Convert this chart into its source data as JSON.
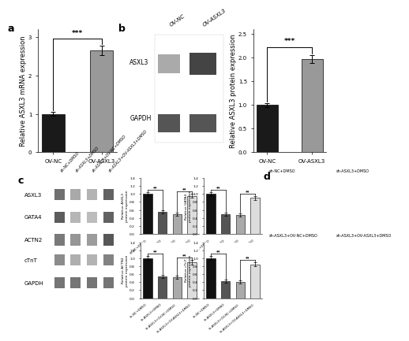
{
  "panel_a": {
    "categories": [
      "OV-NC",
      "OV-ASXL3"
    ],
    "values": [
      1.0,
      2.65
    ],
    "errors": [
      0.05,
      0.12
    ],
    "colors": [
      "#1a1a1a",
      "#999999"
    ],
    "ylabel": "Relative ASXL3 mRNA expression",
    "ylim": [
      0,
      3.2
    ],
    "yticks": [
      0,
      1,
      2,
      3
    ],
    "significance": "***"
  },
  "panel_b_bar": {
    "categories": [
      "OV-NC",
      "OV-ASXL3"
    ],
    "values": [
      1.0,
      1.97
    ],
    "errors": [
      0.04,
      0.08
    ],
    "colors": [
      "#1a1a1a",
      "#999999"
    ],
    "ylabel": "Relative ASXL3 protein expression",
    "ylim": [
      0,
      2.6
    ],
    "yticks": [
      0.0,
      0.5,
      1.0,
      1.5,
      2.0,
      2.5
    ],
    "significance": "***"
  },
  "panel_c_bars": {
    "groups": [
      "sh-NC+DMSO",
      "sh-ASXL3+DMSO",
      "sh-ASXL3+OV-NC+DMSO",
      "sh-ASXL3+OV-ASXL3+DMSO"
    ],
    "colors": [
      "#111111",
      "#555555",
      "#aaaaaa",
      "#dddddd"
    ],
    "ASXL3": [
      1.0,
      0.55,
      0.5,
      0.95
    ],
    "ASXL3_err": [
      0.05,
      0.04,
      0.04,
      0.05
    ],
    "GATA4": [
      1.0,
      0.5,
      0.48,
      0.9
    ],
    "GATA4_err": [
      0.05,
      0.04,
      0.04,
      0.05
    ],
    "ACTN2": [
      1.0,
      0.55,
      0.52,
      0.9
    ],
    "ACTN2_err": [
      0.05,
      0.04,
      0.04,
      0.05
    ],
    "cTnT": [
      1.0,
      0.42,
      0.4,
      0.85
    ],
    "cTnT_err": [
      0.05,
      0.04,
      0.04,
      0.05
    ],
    "ylim": [
      0,
      1.4
    ],
    "yticks": [
      0.0,
      0.2,
      0.4,
      0.6,
      0.8,
      1.0,
      1.2,
      1.4
    ]
  },
  "blot_b": {
    "lane_labels": [
      "OV-NC",
      "OV-ASXL3"
    ],
    "row_labels": [
      "ASXL3",
      "GAPDH"
    ],
    "bg_color": "#e8e8e8",
    "band_colors_ASXL3": [
      "#888888",
      "#333333"
    ],
    "band_colors_GAPDH": [
      "#444444",
      "#555555"
    ]
  },
  "blot_c": {
    "lane_labels": [
      "sh-NC+DMSO",
      "sh-ASXL3+DMSO",
      "sh-ASXL3+OV-NC+DMSO",
      "sh-ASXL3+OV-ASXL3+DMSO"
    ],
    "row_labels": [
      "ASXL3",
      "GATA4",
      "ACTN2",
      "cTnT",
      "GAPDH"
    ],
    "bg_color": "#d0d0d0"
  },
  "panel_d": {
    "labels": [
      [
        "sh-NC+DMSO",
        "sh-ASXL3+DMSO"
      ],
      [
        "sh-ASXL3+OV-NC+DMSO",
        "sh-ASXL3+OV-ASXL3+DMSO"
      ]
    ],
    "colors": [
      [
        "#7a9478",
        "#6a8468"
      ],
      [
        "#708870",
        "#8a9e88"
      ]
    ]
  },
  "background_color": "#ffffff",
  "label_fontsize": 6.0,
  "tick_fontsize": 5.0,
  "bar_width": 0.38
}
